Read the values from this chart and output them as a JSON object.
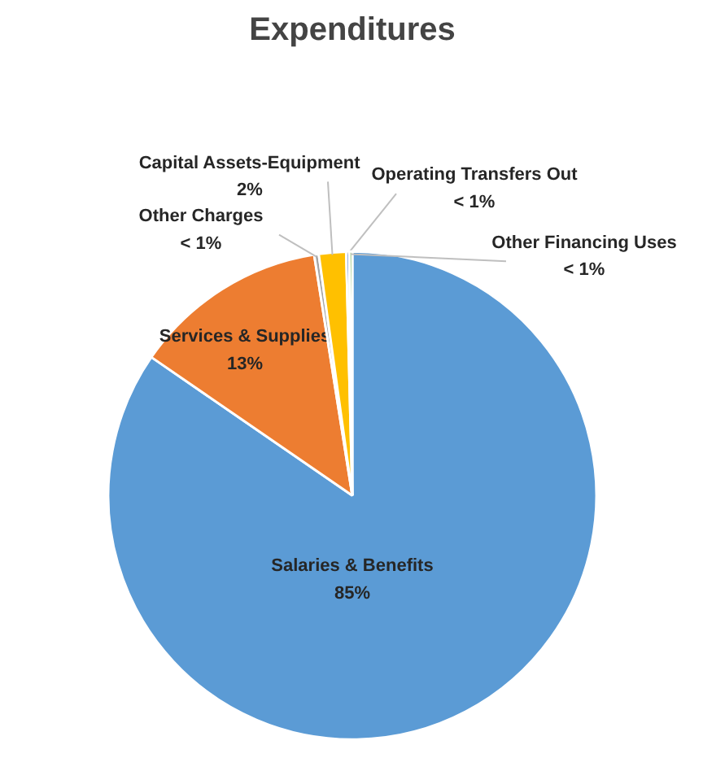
{
  "chart_data": {
    "type": "pie",
    "title": "Expenditures",
    "categories": [
      "Salaries & Benefits",
      "Services & Supplies",
      "Other Charges",
      "Capital Assets-Equipment",
      "Operating Transfers Out",
      "Other Financing Uses"
    ],
    "values": [
      84.6,
      12.9,
      0.3,
      1.8,
      0.2,
      0.2
    ],
    "colors": [
      "#5b9bd5",
      "#ed7d31",
      "#a5a5a5",
      "#ffc000",
      "#4472c4",
      "#70ad47"
    ],
    "value_labels": [
      "85%",
      "13%",
      "< 1%",
      "2%",
      "< 1%",
      "< 1%"
    ],
    "legend": false
  }
}
